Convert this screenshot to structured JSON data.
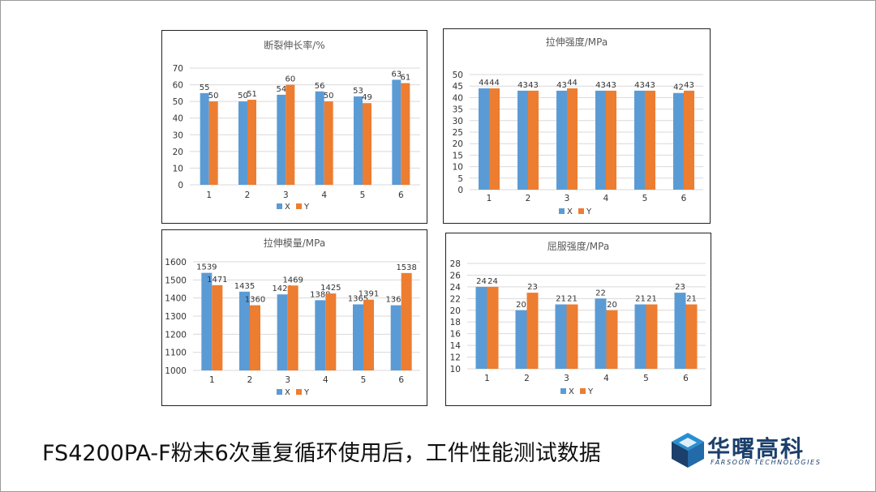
{
  "caption": "FS4200PA-F粉末6次重复循环使用后，工件性能测试数据",
  "logo": {
    "name_cn": "华曙高科",
    "name_en": "FARSOON TECHNOLOGIES"
  },
  "colors": {
    "X": "#5b9bd5",
    "Y": "#ed7d31"
  },
  "chart_data": [
    {
      "type": "bar",
      "title": "断裂伸长率/%",
      "categories": [
        "1",
        "2",
        "3",
        "4",
        "5",
        "6"
      ],
      "series": [
        {
          "name": "X",
          "values": [
            55,
            50,
            54,
            56,
            53,
            63
          ]
        },
        {
          "name": "Y",
          "values": [
            50,
            51,
            60,
            50,
            49,
            61
          ]
        }
      ],
      "ylim": [
        0,
        70
      ],
      "yticks": [
        0,
        10,
        20,
        30,
        40,
        50,
        60,
        70
      ],
      "grid": true,
      "legend": "bottom"
    },
    {
      "type": "bar",
      "title": "拉伸强度/MPa",
      "categories": [
        "1",
        "2",
        "3",
        "4",
        "5",
        "6"
      ],
      "series": [
        {
          "name": "X",
          "values": [
            44,
            43,
            43,
            43,
            43,
            42
          ]
        },
        {
          "name": "Y",
          "values": [
            44,
            43,
            44,
            43,
            43,
            43
          ]
        }
      ],
      "ylim": [
        0,
        50
      ],
      "yticks": [
        0,
        5,
        10,
        15,
        20,
        25,
        30,
        35,
        40,
        45,
        50
      ],
      "grid": true,
      "legend": "bottom"
    },
    {
      "type": "bar",
      "title": "拉伸模量/MPa",
      "categories": [
        "1",
        "2",
        "3",
        "4",
        "5",
        "6"
      ],
      "series": [
        {
          "name": "X",
          "values": [
            1539,
            1435,
            1420,
            1388,
            1365,
            1360
          ]
        },
        {
          "name": "Y",
          "values": [
            1471,
            1360,
            1469,
            1425,
            1391,
            1538
          ]
        }
      ],
      "ylim": [
        1000,
        1600
      ],
      "yticks": [
        1000,
        1100,
        1200,
        1300,
        1400,
        1500,
        1600
      ],
      "grid": true,
      "legend": "bottom"
    },
    {
      "type": "bar",
      "title": "屈服强度/MPa",
      "categories": [
        "1",
        "2",
        "3",
        "4",
        "5",
        "6"
      ],
      "series": [
        {
          "name": "X",
          "values": [
            24,
            20,
            21,
            22,
            21,
            23
          ]
        },
        {
          "name": "Y",
          "values": [
            24,
            23,
            21,
            20,
            21,
            21
          ]
        }
      ],
      "ylim": [
        10,
        28
      ],
      "yticks": [
        10,
        12,
        14,
        16,
        18,
        20,
        22,
        24,
        26,
        28
      ],
      "grid": true,
      "legend": "bottom"
    }
  ]
}
